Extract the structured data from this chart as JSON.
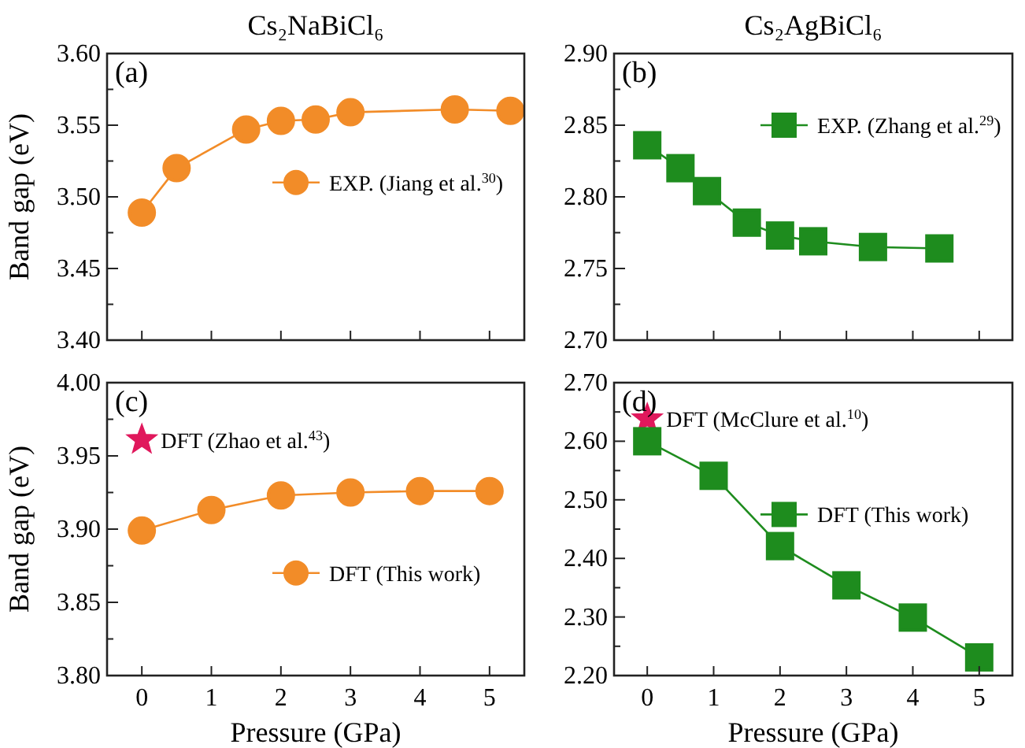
{
  "chart_data": [
    {
      "type": "line",
      "title": "Cs₂NaBiCl₆",
      "ylabel": "Band gap (eV)",
      "annotations": [
        "(a)"
      ],
      "xlim": [
        -0.5,
        5.5
      ],
      "xticks": [
        {
          "value": 0,
          "label": null
        },
        {
          "value": 1,
          "label": null
        },
        {
          "value": 2,
          "label": null
        },
        {
          "value": 3,
          "label": null
        },
        {
          "value": 4,
          "label": null
        },
        {
          "value": 5,
          "label": null
        }
      ],
      "ylim": [
        3.4,
        3.6
      ],
      "yticks": [
        {
          "value": 3.4,
          "label": "3.40"
        },
        {
          "value": 3.425,
          "label": null
        },
        3.45,
        {
          "value": 3.475,
          "label": null
        },
        {
          "value": 3.5,
          "label": "3.50"
        },
        {
          "value": 3.525,
          "label": null
        },
        3.55,
        {
          "value": 3.575,
          "label": null
        },
        {
          "value": 3.6,
          "label": "3.60"
        }
      ],
      "tick_labels": "y",
      "legend": "right",
      "series": [
        {
          "name": "EXP. (Jiang et al.$^{30}$)",
          "color": "#f28c28",
          "marker": "circle",
          "x": [
            0,
            0.5,
            1.5,
            2,
            2.5,
            3,
            4.5,
            5.3
          ],
          "values": [
            3.489,
            3.52,
            3.547,
            3.553,
            3.554,
            3.559,
            3.561,
            3.56
          ]
        }
      ]
    },
    {
      "type": "line",
      "title": "Cs₂AgBiCl₆",
      "annotations": [
        "(b)"
      ],
      "xlim": [
        -0.5,
        5.5
      ],
      "xticks": [
        {
          "value": 0,
          "label": null
        },
        {
          "value": 1,
          "label": null
        },
        {
          "value": 2,
          "label": null
        },
        {
          "value": 3,
          "label": null
        },
        {
          "value": 4,
          "label": null
        },
        {
          "value": 5,
          "label": null
        }
      ],
      "ylim": [
        2.7,
        2.9
      ],
      "yticks": [
        {
          "value": 2.7,
          "label": "2.70"
        },
        {
          "value": 2.725,
          "label": null
        },
        2.75,
        {
          "value": 2.775,
          "label": null
        },
        {
          "value": 2.8,
          "label": "2.80"
        },
        {
          "value": 2.825,
          "label": null
        },
        2.85,
        {
          "value": 2.875,
          "label": null
        },
        {
          "value": 2.9,
          "label": "2.90"
        }
      ],
      "tick_labels": "y",
      "legend": "top right",
      "series": [
        {
          "name": "EXP. (Zhang et al.$^{29}$)",
          "color": "#1e8c1e",
          "marker": "square",
          "x": [
            0,
            0.5,
            0.9,
            1.5,
            2,
            2.5,
            3.4,
            4.4
          ],
          "values": [
            2.836,
            2.82,
            2.804,
            2.782,
            2.773,
            2.769,
            2.765,
            2.764
          ]
        }
      ]
    },
    {
      "type": "line",
      "xlabel": "Pressure (GPa)",
      "ylabel": "Band gap (eV)",
      "annotations": [
        "(c)"
      ],
      "xlim": [
        -0.5,
        5.5
      ],
      "xticks": [
        0,
        1,
        2,
        3,
        4,
        5
      ],
      "ylim": [
        3.8,
        4.0
      ],
      "yticks": [
        {
          "value": 3.8,
          "label": "3.80"
        },
        {
          "value": 3.825,
          "label": null
        },
        3.85,
        {
          "value": 3.875,
          "label": null
        },
        {
          "value": 3.9,
          "label": "3.90"
        },
        {
          "value": 3.925,
          "label": null
        },
        3.95,
        {
          "value": 3.975,
          "label": null
        },
        {
          "value": 4.0,
          "label": "4.00"
        }
      ],
      "legend": "bottom right",
      "series": [
        {
          "name": "DFT (Zhao et al.$^{43}$)",
          "type": "scatter",
          "color": "#e0185c",
          "marker": "star",
          "x": [
            0
          ],
          "values": [
            3.961
          ]
        },
        {
          "name": "DFT (This work)",
          "color": "#f28c28",
          "marker": "circle",
          "x": [
            0,
            1,
            2,
            3,
            4,
            5
          ],
          "values": [
            3.899,
            3.913,
            3.923,
            3.925,
            3.926,
            3.926
          ]
        }
      ]
    },
    {
      "type": "line",
      "xlabel": "Pressure (GPa)",
      "annotations": [
        "(d)"
      ],
      "xlim": [
        -0.5,
        5.5
      ],
      "xticks": [
        0,
        1,
        2,
        3,
        4,
        5
      ],
      "ylim": [
        2.2,
        2.7
      ],
      "yticks": [
        {
          "value": 2.2,
          "label": "2.20"
        },
        {
          "value": 2.25,
          "label": null
        },
        {
          "value": 2.3,
          "label": "2.30"
        },
        {
          "value": 2.35,
          "label": null
        },
        {
          "value": 2.4,
          "label": "2.40"
        },
        {
          "value": 2.45,
          "label": null
        },
        {
          "value": 2.5,
          "label": "2.50"
        },
        {
          "value": 2.55,
          "label": null
        },
        {
          "value": 2.6,
          "label": "2.60"
        },
        {
          "value": 2.65,
          "label": null
        },
        {
          "value": 2.7,
          "label": "2.70"
        }
      ],
      "legend": "right",
      "series": [
        {
          "name": "DFT (McClure et al.$^{10}$)",
          "type": "scatter",
          "color": "#e0185c",
          "marker": "star",
          "x": [
            0
          ],
          "values": [
            2.638
          ]
        },
        {
          "name": "DFT (This work)",
          "color": "#1e8c1e",
          "marker": "square",
          "x": [
            0,
            1,
            2,
            3,
            4,
            5
          ],
          "values": [
            2.6,
            2.541,
            2.421,
            2.354,
            2.299,
            2.231
          ]
        }
      ]
    }
  ]
}
